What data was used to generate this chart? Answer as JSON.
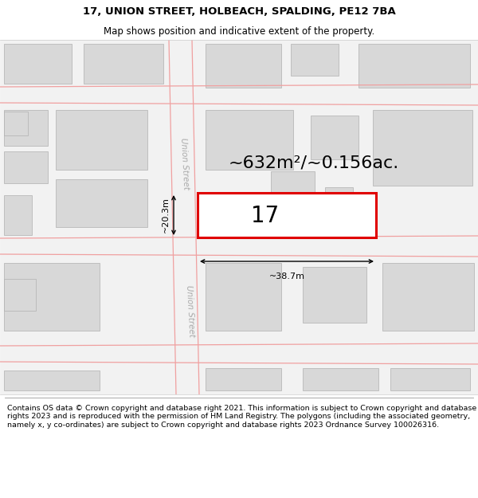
{
  "title": "17, UNION STREET, HOLBEACH, SPALDING, PE12 7BA",
  "subtitle": "Map shows position and indicative extent of the property.",
  "area_text": "~632m²/~0.156ac.",
  "label_17": "17",
  "dim_width": "~38.7m",
  "dim_height": "~20.3m",
  "street_label": "Union Street",
  "footer": "Contains OS data © Crown copyright and database right 2021. This information is subject to Crown copyright and database rights 2023 and is reproduced with the permission of HM Land Registry. The polygons (including the associated geometry, namely x, y co-ordinates) are subject to Crown copyright and database rights 2023 Ordnance Survey 100026316.",
  "background_color": "#ffffff",
  "map_background": "#f0f0f0",
  "road_color": "#f0a0a0",
  "building_fill": "#d8d8d8",
  "building_edge": "#b0b0b0",
  "highlight_color": "#e00000",
  "title_fontsize": 9.5,
  "subtitle_fontsize": 8.5,
  "footer_fontsize": 6.8,
  "area_fontsize": 16,
  "label_fontsize": 20,
  "dim_fontsize": 8,
  "street_fontsize": 7.5
}
